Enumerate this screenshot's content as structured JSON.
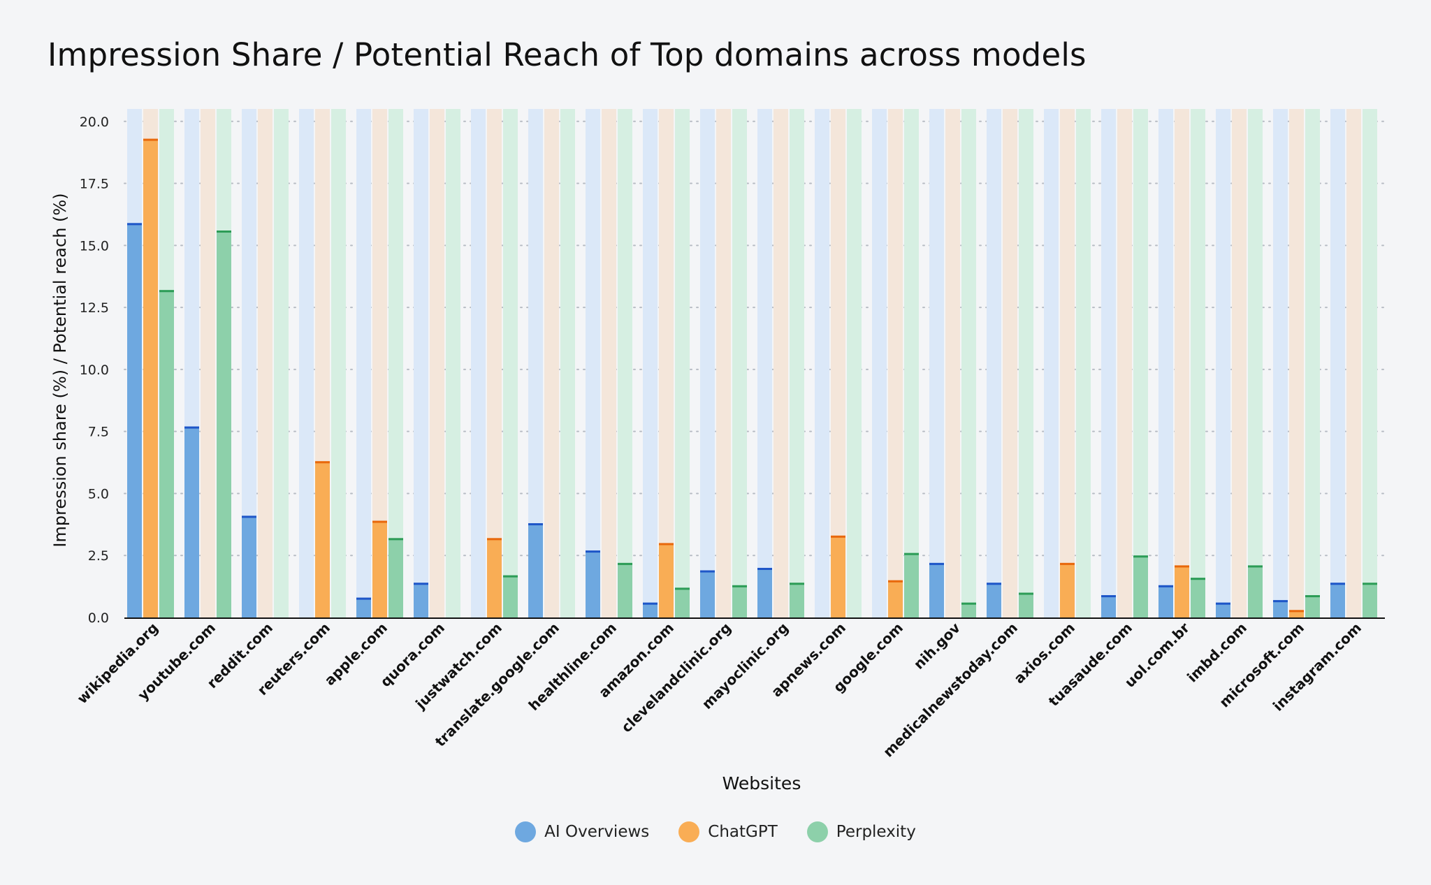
{
  "chart_data": {
    "type": "bar",
    "title": "Impression Share / Potential Reach of Top domains across models",
    "xlabel": "Websites",
    "ylabel": "Impression share (%) / Potential reach (%)",
    "ylim": [
      0,
      20.5
    ],
    "yticks": [
      "0.0",
      "2.5",
      "5.0",
      "7.5",
      "10.0",
      "12.5",
      "15.0",
      "17.5",
      "20.0"
    ],
    "grid": "horizontal-dotted",
    "legend_position": "bottom-center",
    "categories": [
      "wikipedia.org",
      "youtube.com",
      "reddit.com",
      "reuters.com",
      "apple.com",
      "quora.com",
      "justwatch.com",
      "translate.google.com",
      "healthline.com",
      "amazon.com",
      "clevelandclinic.org",
      "mayoclinic.org",
      "apnews.com",
      "google.com",
      "nih.gov",
      "medicalnewstoday.com",
      "axios.com",
      "tuasaude.com",
      "uol.com.br",
      "imbd.com",
      "microsoft.com",
      "instagram.com"
    ],
    "series": [
      {
        "name": "AI Overviews",
        "color": "#6ea8e0",
        "edge_color": "#1e56c8",
        "bg_color": "#dbe8f8",
        "values": [
          15.9,
          7.7,
          4.1,
          0,
          0.8,
          1.4,
          0,
          3.8,
          2.7,
          0.6,
          1.9,
          2.0,
          0,
          0,
          2.2,
          1.4,
          0,
          0.9,
          1.3,
          0.6,
          0.7,
          1.4
        ]
      },
      {
        "name": "ChatGPT",
        "color": "#f9ad55",
        "edge_color": "#e8680c",
        "bg_color": "#f4e6da",
        "values": [
          19.3,
          0,
          0,
          6.3,
          3.9,
          0,
          3.2,
          0,
          0,
          3.0,
          0,
          0,
          3.3,
          1.5,
          0,
          0,
          2.2,
          0,
          2.1,
          0,
          0.3,
          0
        ]
      },
      {
        "name": "Perplexity",
        "color": "#8dd0aa",
        "edge_color": "#2c9c56",
        "bg_color": "#d6efe2",
        "values": [
          13.2,
          15.6,
          0,
          0,
          3.2,
          0,
          1.7,
          0,
          2.2,
          1.2,
          1.3,
          1.4,
          0,
          2.6,
          0.6,
          1.0,
          0,
          2.5,
          1.6,
          2.1,
          0.9,
          1.4
        ]
      }
    ]
  }
}
